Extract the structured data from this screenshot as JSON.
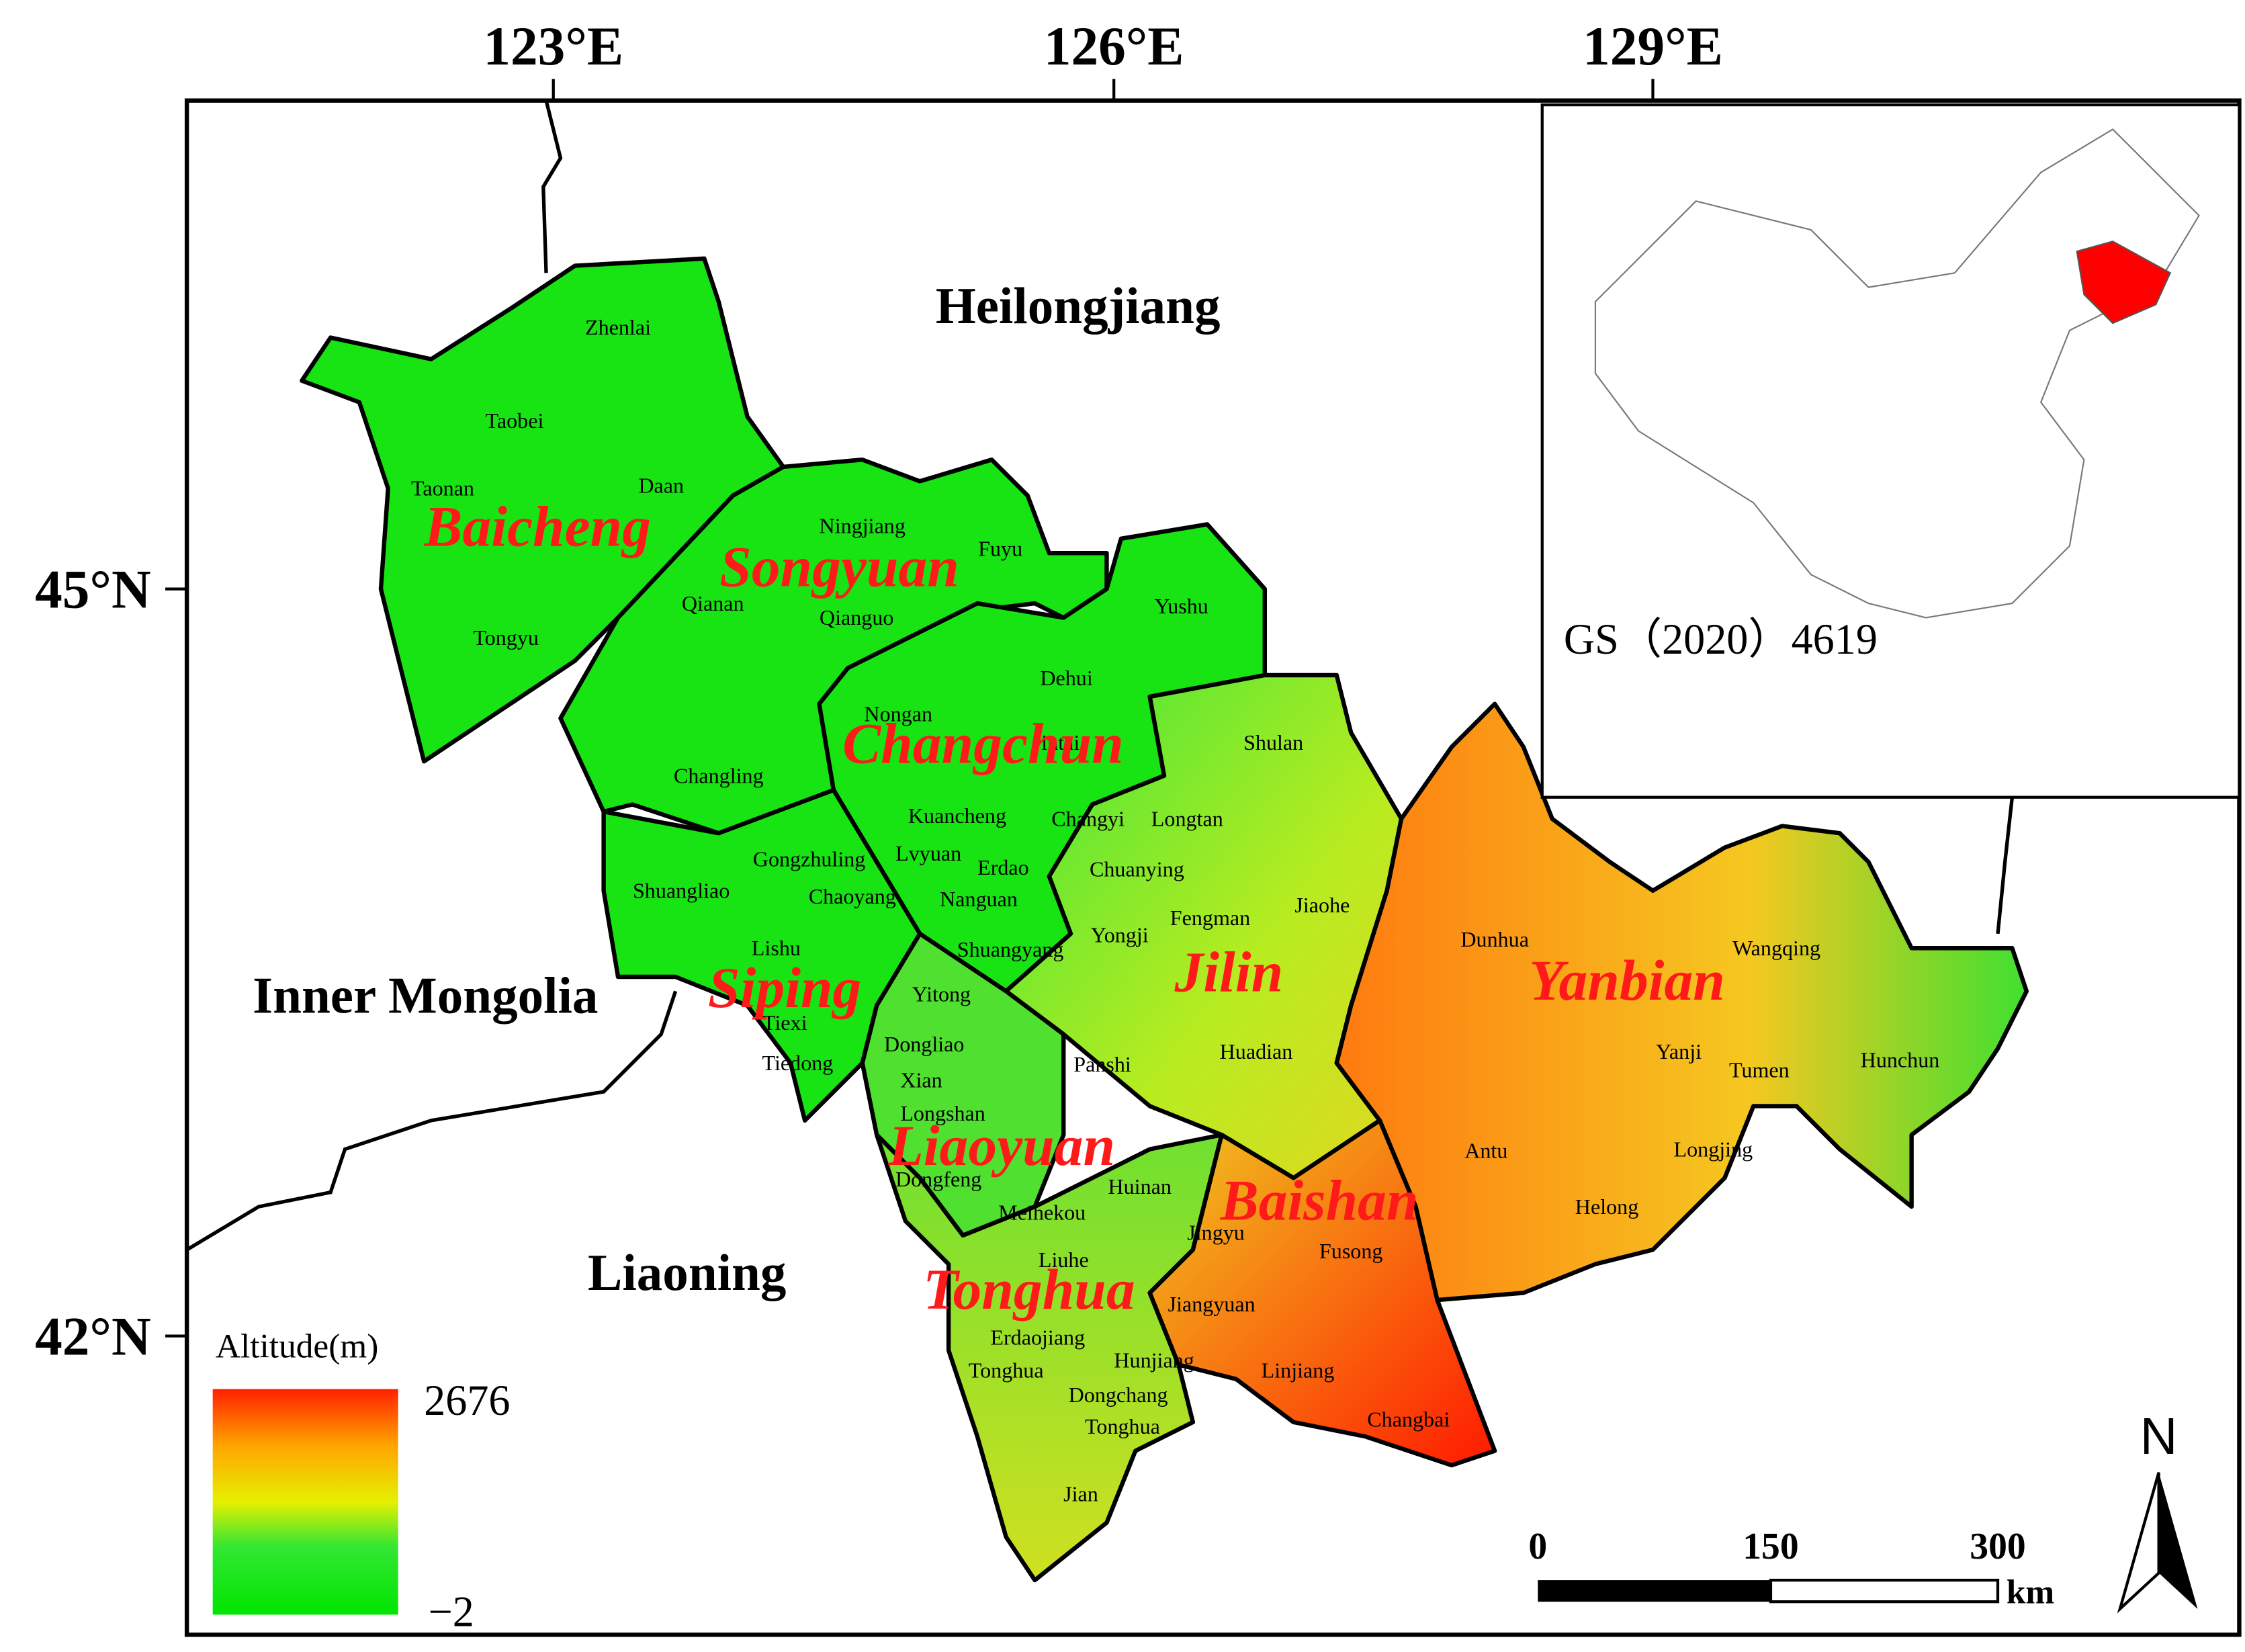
{
  "axes": {
    "top": [
      "123°E",
      "126°E",
      "129°E"
    ],
    "left": [
      "45°N",
      "42°N"
    ]
  },
  "neighbors": [
    "Heilongjiang",
    "Inner Mongolia",
    "Liaoning"
  ],
  "prefectures": [
    "Baicheng",
    "Songyuan",
    "Changchun",
    "Siping",
    "Jilin",
    "Yanbian",
    "Liaoyuan",
    "Baishan",
    "Tonghua"
  ],
  "counties": [
    "Zhenlai",
    "Taobei",
    "Taonan",
    "Daan",
    "Tongyu",
    "Ningjiang",
    "Fuyu",
    "Qianan",
    "Qianguo",
    "Yushu",
    "Dehui",
    "Nongan",
    "Changling",
    "Jiutai",
    "Shulan",
    "Kuancheng",
    "Changyi",
    "Longtan",
    "Gongzhuling",
    "Lvyuan",
    "Erdao",
    "Chuanying",
    "Shuangliao",
    "Chaoyang",
    "Nanguan",
    "Fengman",
    "Jiaohe",
    "Yongji",
    "Lishu",
    "Shuangyang",
    "Dunhua",
    "Wangqing",
    "Yitong",
    "Tiexi",
    "Tiedong",
    "Dongliao",
    "Xian",
    "Panshi",
    "Huadian",
    "Yanji",
    "Tumen",
    "Hunchun",
    "Longshan",
    "Antu",
    "Longjing",
    "Dongfeng",
    "Huinan",
    "Meihekou",
    "Helong",
    "Jingyu",
    "Fusong",
    "Liuhe",
    "Jiangyuan",
    "Erdaojiang",
    "Hunjiang",
    "Tonghua",
    "Linjiang",
    "Dongchang",
    "Tonghua",
    "Changbai",
    "Jian"
  ],
  "inset": {
    "code": "GS（2020）4619"
  },
  "legend": {
    "title": "Altitude(m)",
    "max": "2676",
    "min": "−2"
  },
  "scale_bar": {
    "labels": [
      "0",
      "150",
      "300"
    ],
    "unit": "km"
  },
  "north_arrow": "N"
}
